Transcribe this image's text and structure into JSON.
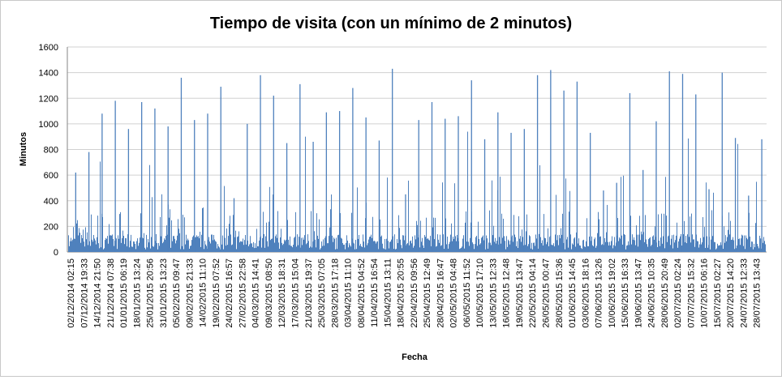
{
  "chart_data": {
    "type": "bar",
    "title": "Tiempo de visita (con un mínimo de 2 minutos)",
    "xlabel": "Fecha",
    "ylabel": "Minutos",
    "ylim": [
      0,
      1600
    ],
    "yticks": [
      0,
      200,
      400,
      600,
      800,
      1000,
      1200,
      1400,
      1600
    ],
    "grid": true,
    "legend": "none",
    "bar_color": "#4f81bd",
    "categories": [
      "02/12/2014 02:15",
      "07/12/2014 19:33",
      "14/12/2014 21:50",
      "21/12/2014 07:38",
      "01/01/2015 06:19",
      "18/01/2015 13:24",
      "25/01/2015 20:56",
      "31/01/2015 13:23",
      "05/02/2015 09:47",
      "09/02/2015 21:33",
      "14/02/2015 11:10",
      "19/02/2015 07:52",
      "24/02/2015 16:57",
      "27/02/2015 22:58",
      "04/03/2015 14:41",
      "09/03/2015 08:50",
      "12/03/2015 18:31",
      "17/03/2015 15:04",
      "21/03/2015 19:37",
      "25/03/2015 07:05",
      "28/03/2015 17:18",
      "03/04/2015 11:10",
      "08/04/2015 04:52",
      "11/04/2015 16:54",
      "15/04/2015 13:11",
      "18/04/2015 20:55",
      "22/04/2015 09:56",
      "25/04/2015 12:49",
      "28/04/2015 16:47",
      "02/05/2015 04:48",
      "06/05/2015 11:52",
      "10/05/2015 17:10",
      "13/05/2015 12:33",
      "16/05/2015 12:48",
      "19/05/2015 13:47",
      "22/05/2015 04:14",
      "26/05/2015 00:47",
      "28/05/2015 15:36",
      "01/06/2015 14:45",
      "03/06/2015 18:16",
      "07/06/2015 13:26",
      "10/06/2015 19:02",
      "15/06/2015 16:33",
      "19/06/2015 13:47",
      "24/06/2015 10:35",
      "28/06/2015 20:49",
      "02/07/2015 02:24",
      "07/07/2015 15:32",
      "10/07/2015 06:16",
      "15/07/2015 02:27",
      "20/07/2015 14:20",
      "24/07/2015 12:33",
      "28/07/2015 13:43"
    ],
    "peaks": [
      {
        "x": "02/12/2014 02:15",
        "y": 620
      },
      {
        "x": "07/12/2014 19:33",
        "y": 780
      },
      {
        "x": "14/12/2014 21:50",
        "y": 1080
      },
      {
        "x": "21/12/2014 07:38",
        "y": 1180
      },
      {
        "x": "01/01/2015 06:19",
        "y": 960
      },
      {
        "x": "18/01/2015 13:24",
        "y": 1170
      },
      {
        "x": "25/01/2015 20:56",
        "y": 1120
      },
      {
        "x": "31/01/2015 13:23",
        "y": 980
      },
      {
        "x": "05/02/2015 09:47",
        "y": 1360
      },
      {
        "x": "09/02/2015 21:33",
        "y": 1030
      },
      {
        "x": "14/02/2015 11:10",
        "y": 1080
      },
      {
        "x": "19/02/2015 07:52",
        "y": 1290
      },
      {
        "x": "24/02/2015 16:57",
        "y": 420
      },
      {
        "x": "27/02/2015 22:58",
        "y": 1000
      },
      {
        "x": "04/03/2015 14:41",
        "y": 1380
      },
      {
        "x": "09/03/2015 08:50",
        "y": 1220
      },
      {
        "x": "12/03/2015 18:31",
        "y": 850
      },
      {
        "x": "17/03/2015 15:04",
        "y": 1310
      },
      {
        "x": "21/03/2015 19:37",
        "y": 860
      },
      {
        "x": "25/03/2015 07:05",
        "y": 1090
      },
      {
        "x": "28/03/2015 17:18",
        "y": 1100
      },
      {
        "x": "03/04/2015 11:10",
        "y": 1280
      },
      {
        "x": "08/04/2015 04:52",
        "y": 1050
      },
      {
        "x": "11/04/2015 16:54",
        "y": 870
      },
      {
        "x": "15/04/2015 13:11",
        "y": 1430
      },
      {
        "x": "18/04/2015 20:55",
        "y": 450
      },
      {
        "x": "22/04/2015 09:56",
        "y": 1030
      },
      {
        "x": "25/04/2015 12:49",
        "y": 1170
      },
      {
        "x": "28/04/2015 16:47",
        "y": 1040
      },
      {
        "x": "02/05/2015 04:48",
        "y": 1060
      },
      {
        "x": "06/05/2015 11:52",
        "y": 1340
      },
      {
        "x": "10/05/2015 17:10",
        "y": 880
      },
      {
        "x": "13/05/2015 12:33",
        "y": 1090
      },
      {
        "x": "16/05/2015 12:48",
        "y": 930
      },
      {
        "x": "19/05/2015 13:47",
        "y": 960
      },
      {
        "x": "22/05/2015 04:14",
        "y": 1380
      },
      {
        "x": "26/05/2015 00:47",
        "y": 1420
      },
      {
        "x": "28/05/2015 15:36",
        "y": 1260
      },
      {
        "x": "01/06/2015 14:45",
        "y": 1330
      },
      {
        "x": "03/06/2015 18:16",
        "y": 930
      },
      {
        "x": "07/06/2015 13:26",
        "y": 480
      },
      {
        "x": "10/06/2015 19:02",
        "y": 540
      },
      {
        "x": "15/06/2015 16:33",
        "y": 1240
      },
      {
        "x": "19/06/2015 13:47",
        "y": 640
      },
      {
        "x": "24/06/2015 10:35",
        "y": 1020
      },
      {
        "x": "28/06/2015 20:49",
        "y": 1410
      },
      {
        "x": "02/07/2015 02:24",
        "y": 1390
      },
      {
        "x": "07/07/2015 15:32",
        "y": 1230
      },
      {
        "x": "10/07/2015 06:16",
        "y": 490
      },
      {
        "x": "15/07/2015 02:27",
        "y": 1400
      },
      {
        "x": "20/07/2015 14:20",
        "y": 890
      },
      {
        "x": "24/07/2015 12:33",
        "y": 440
      },
      {
        "x": "28/07/2015 13:43",
        "y": 880
      }
    ]
  }
}
